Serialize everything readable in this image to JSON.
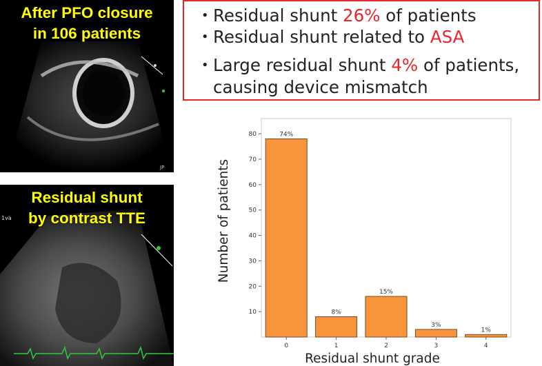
{
  "echo_top": {
    "caption_line1": "After PFO closure",
    "caption_line2": "in 106 patients",
    "corner_text": "JP"
  },
  "echo_bottom": {
    "caption_line1": "Residual shunt",
    "caption_line2": "by contrast TTE",
    "corner_text": "1va"
  },
  "bullets": {
    "dot": "・",
    "item1_pre": "Residual shunt  ",
    "item1_red": "26%",
    "item1_post": " of patients",
    "item2_pre": "Residual shunt related to ",
    "item2_red": "ASA",
    "item3_pre": "Large residual shunt ",
    "item3_red": "4%",
    "item3_post": " of patients,",
    "item4": "causing device mismatch"
  },
  "colors": {
    "bar_fill": "#f7943c",
    "bar_stroke": "#7a4a1c",
    "highlight_red": "#e8262a",
    "caption_yellow": "#ffff00",
    "frame_border": "#e8262a"
  },
  "chart_data": {
    "type": "bar",
    "categories": [
      "0",
      "1",
      "2",
      "3",
      "4"
    ],
    "values": [
      78,
      8,
      16,
      3,
      1
    ],
    "data_labels": [
      "74%",
      "8%",
      "15%",
      "3%",
      "1%"
    ],
    "xlabel": "Residual shunt grade",
    "ylabel": "Number of patients",
    "yticks": [
      "10",
      "20",
      "30",
      "40",
      "50",
      "60",
      "70",
      "80"
    ],
    "ylim": [
      0,
      86
    ],
    "grid": false
  }
}
